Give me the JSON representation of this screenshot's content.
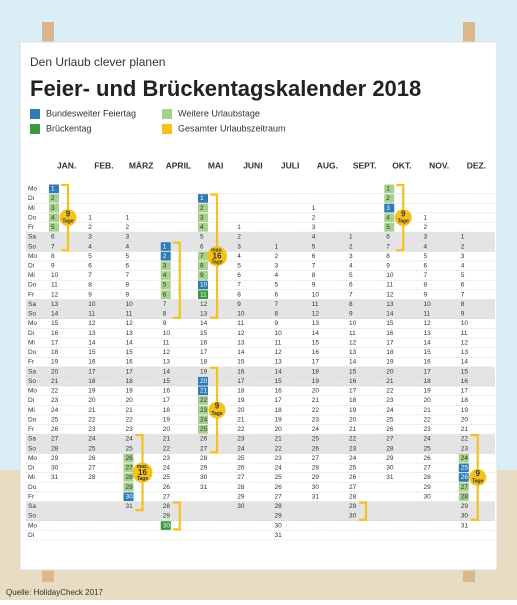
{
  "calendar": {
    "subtitle": "Den Urlaub clever planen",
    "title": "Feier- und Brückentagskalender 2018",
    "legend": {
      "holiday": {
        "label": "Bundesweiter Feiertag",
        "color": "#2f7cb5"
      },
      "extra": {
        "label": "Weitere Urlaubstage",
        "color": "#a9d18e"
      },
      "bridge": {
        "label": "Brückentag",
        "color": "#3b9a3f"
      },
      "period": {
        "label": "Gesamter Urlaubszeitraum",
        "color": "#f4c21b"
      }
    },
    "weekdays": [
      "Mo",
      "Di",
      "Mi",
      "Do",
      "Fr",
      "Sa",
      "So"
    ],
    "months": [
      {
        "name": "JAN.",
        "days": [
          1,
          2,
          3,
          4,
          5,
          6,
          7,
          8,
          9,
          10,
          11,
          12,
          13,
          14,
          15,
          16,
          17,
          18,
          19,
          20,
          21,
          22,
          23,
          24,
          25,
          26,
          27,
          28,
          29,
          30,
          31
        ],
        "holiday": [
          1
        ],
        "extra": [
          2,
          3,
          4,
          5
        ],
        "bridge": [],
        "spans": [
          {
            "from": 1,
            "to": 7,
            "label": [
              "9",
              "Tage"
            ]
          }
        ]
      },
      {
        "name": "FEB.",
        "days": [
          1,
          2,
          3,
          4,
          5,
          6,
          7,
          8,
          9,
          10,
          11,
          12,
          13,
          14,
          15,
          16,
          17,
          18,
          19,
          20,
          21,
          22,
          23,
          24,
          25,
          26,
          27,
          28
        ],
        "holiday": [],
        "extra": [],
        "bridge": [],
        "spans": []
      },
      {
        "name": "MÄRZ",
        "days": [
          1,
          2,
          3,
          4,
          5,
          6,
          7,
          8,
          9,
          10,
          11,
          12,
          13,
          14,
          15,
          16,
          17,
          18,
          19,
          20,
          21,
          22,
          23,
          24,
          25,
          26,
          27,
          28,
          29,
          30,
          31
        ],
        "holiday": [
          30
        ],
        "extra": [
          26,
          27,
          28,
          29
        ],
        "bridge": [],
        "spans": [
          {
            "from": 24,
            "to": 31,
            "label": [
              "max.",
              "16",
              "Tage"
            ]
          }
        ]
      },
      {
        "name": "APRIL",
        "days": [
          1,
          2,
          3,
          4,
          5,
          6,
          7,
          8,
          9,
          10,
          11,
          12,
          13,
          14,
          15,
          16,
          17,
          18,
          19,
          20,
          21,
          22,
          23,
          24,
          25,
          26,
          27,
          28,
          29,
          30
        ],
        "holiday": [
          1,
          2
        ],
        "extra": [
          3,
          4,
          5,
          6
        ],
        "bridge": [
          30
        ],
        "spans": [
          {
            "from": 1,
            "to": 8
          },
          {
            "from": 28,
            "to": 30
          }
        ]
      },
      {
        "name": "MAI",
        "days": [
          1,
          2,
          3,
          4,
          5,
          6,
          7,
          8,
          9,
          10,
          11,
          12,
          13,
          14,
          15,
          16,
          17,
          18,
          19,
          20,
          21,
          22,
          23,
          24,
          25,
          26,
          27,
          28,
          29,
          30,
          31
        ],
        "holiday": [
          1,
          10,
          20,
          21
        ],
        "extra": [
          2,
          3,
          4,
          7,
          8,
          9,
          22,
          23,
          24,
          25
        ],
        "bridge": [
          11
        ],
        "spans": [
          {
            "from": 1,
            "to": 13,
            "label": [
              "max.",
              "16",
              "Tage"
            ]
          },
          {
            "from": 19,
            "to": 27,
            "label": [
              "9",
              "Tage"
            ]
          }
        ]
      },
      {
        "name": "JUNI",
        "days": [
          1,
          2,
          3,
          4,
          5,
          6,
          7,
          8,
          9,
          10,
          11,
          12,
          13,
          14,
          15,
          16,
          17,
          18,
          19,
          20,
          21,
          22,
          23,
          24,
          25,
          26,
          27,
          28,
          29,
          30
        ],
        "holiday": [],
        "extra": [],
        "bridge": [],
        "spans": []
      },
      {
        "name": "JULI",
        "days": [
          1,
          2,
          3,
          4,
          5,
          6,
          7,
          8,
          9,
          10,
          11,
          12,
          13,
          14,
          15,
          16,
          17,
          18,
          19,
          20,
          21,
          22,
          23,
          24,
          25,
          26,
          27,
          28,
          29,
          30,
          31
        ],
        "holiday": [],
        "extra": [],
        "bridge": [],
        "spans": []
      },
      {
        "name": "AUG.",
        "days": [
          1,
          2,
          3,
          4,
          5,
          6,
          7,
          8,
          9,
          10,
          11,
          12,
          13,
          14,
          15,
          16,
          17,
          18,
          19,
          20,
          21,
          22,
          23,
          24,
          25,
          26,
          27,
          28,
          29,
          30,
          31
        ],
        "holiday": [],
        "extra": [],
        "bridge": [],
        "spans": []
      },
      {
        "name": "SEPT.",
        "days": [
          1,
          2,
          3,
          4,
          5,
          6,
          7,
          8,
          9,
          10,
          11,
          12,
          13,
          14,
          15,
          16,
          17,
          18,
          19,
          20,
          21,
          22,
          23,
          24,
          25,
          26,
          27,
          28,
          29,
          30
        ],
        "holiday": [],
        "extra": [],
        "bridge": [],
        "spans": [
          {
            "from": 29,
            "to": 30
          }
        ]
      },
      {
        "name": "OKT.",
        "days": [
          1,
          2,
          3,
          4,
          5,
          6,
          7,
          8,
          9,
          10,
          11,
          12,
          13,
          14,
          15,
          16,
          17,
          18,
          19,
          20,
          21,
          22,
          23,
          24,
          25,
          26,
          27,
          28,
          29,
          30,
          31
        ],
        "holiday": [
          3
        ],
        "extra": [
          1,
          2,
          4,
          5
        ],
        "bridge": [],
        "spans": [
          {
            "from": 1,
            "to": 7,
            "label": [
              "9",
              "Tage"
            ]
          }
        ]
      },
      {
        "name": "NOV.",
        "days": [
          1,
          2,
          3,
          4,
          5,
          6,
          7,
          8,
          9,
          10,
          11,
          12,
          13,
          14,
          15,
          16,
          17,
          18,
          19,
          20,
          21,
          22,
          23,
          24,
          25,
          26,
          27,
          28,
          29,
          30
        ],
        "holiday": [],
        "extra": [],
        "bridge": [],
        "spans": []
      },
      {
        "name": "DEZ.",
        "days": [
          1,
          2,
          3,
          4,
          5,
          6,
          7,
          8,
          9,
          10,
          11,
          12,
          13,
          14,
          15,
          16,
          17,
          18,
          19,
          20,
          21,
          22,
          23,
          24,
          25,
          26,
          27,
          28,
          29,
          30,
          31
        ],
        "holiday": [
          25,
          26
        ],
        "extra": [
          24,
          27,
          28
        ],
        "bridge": [],
        "spans": [
          {
            "from": 22,
            "to": 30,
            "label": [
              "9",
              "Tage"
            ]
          }
        ]
      }
    ],
    "source": "Quelle: HolidayCheck 2017"
  }
}
